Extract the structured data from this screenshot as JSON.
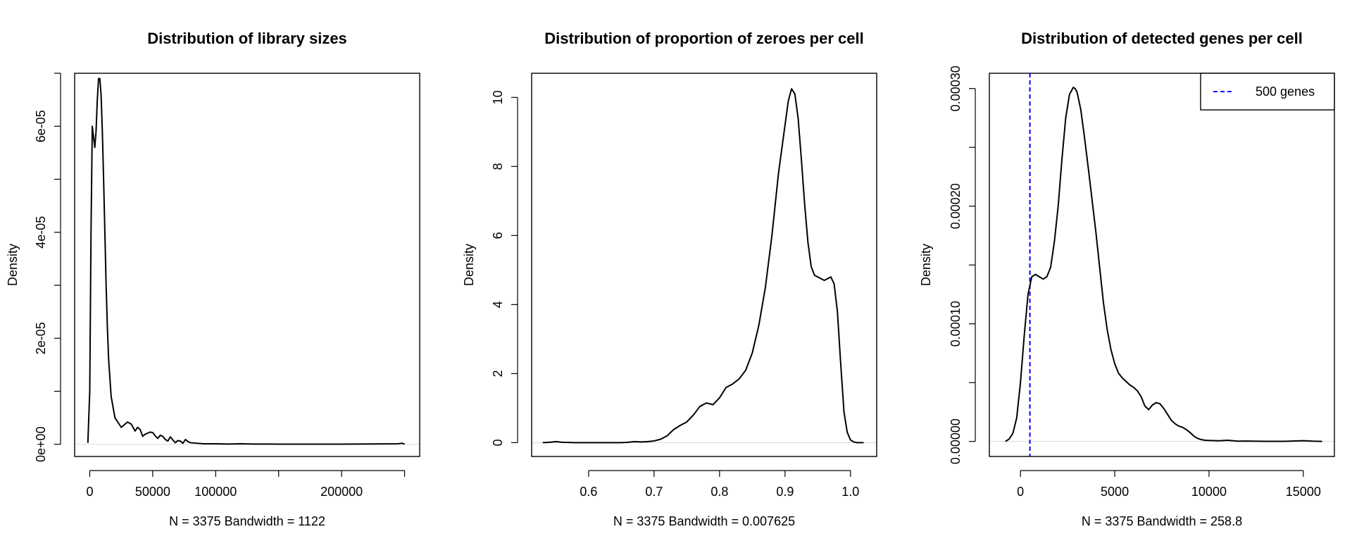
{
  "chart_data": [
    {
      "type": "line",
      "title": "Distribution of library sizes",
      "xlabel": "N = 3375   Bandwidth = 1122",
      "ylabel": "Density",
      "xlim": [
        -12000,
        262000
      ],
      "ylim": [
        -2.3e-06,
        7e-05
      ],
      "x_ticks": [
        {
          "v": 0,
          "t": "0"
        },
        {
          "v": 50000,
          "t": "50000"
        },
        {
          "v": 100000,
          "t": "100000"
        },
        {
          "v": 150000,
          "t": ""
        },
        {
          "v": 200000,
          "t": "200000"
        },
        {
          "v": 250000,
          "t": ""
        }
      ],
      "y_ticks": [
        {
          "v": 0,
          "t": "0e+00"
        },
        {
          "v": 1e-05,
          "t": ""
        },
        {
          "v": 2e-05,
          "t": "2e-05"
        },
        {
          "v": 3e-05,
          "t": ""
        },
        {
          "v": 4e-05,
          "t": "4e-05"
        },
        {
          "v": 5e-05,
          "t": ""
        },
        {
          "v": 6e-05,
          "t": "6e-05"
        },
        {
          "v": 7e-05,
          "t": ""
        }
      ],
      "series": [
        {
          "x": [
            -1500,
            0,
            1000,
            2000,
            3000,
            4000,
            5000,
            6000,
            7000,
            8000,
            9000,
            10000,
            11000,
            12000,
            13000,
            14000,
            15000,
            17000,
            20000,
            25000,
            30000,
            33000,
            36000,
            38000,
            40000,
            42000,
            44000,
            46000,
            48000,
            50000,
            52000,
            54000,
            56000,
            58000,
            60000,
            62000,
            64000,
            66000,
            68000,
            70000,
            72000,
            74000,
            76000,
            78000,
            80000,
            85000,
            90000,
            100000,
            110000,
            120000,
            130000,
            140000,
            150000,
            200000,
            245000,
            248000,
            250000
          ],
          "y": [
            2.5e-07,
            1e-05,
            4e-05,
            6e-05,
            5.8e-05,
            5.6e-05,
            5.9e-05,
            6.5e-05,
            6.9e-05,
            6.9e-05,
            6.6e-05,
            5.9e-05,
            5e-05,
            4e-05,
            3e-05,
            2.2e-05,
            1.6e-05,
            9e-06,
            5e-06,
            3.2e-06,
            4.2e-06,
            3.8e-06,
            2.5e-06,
            3.2e-06,
            2.8e-06,
            1.5e-06,
            1.9e-06,
            2.1e-06,
            2.3e-06,
            2.2e-06,
            1.6e-06,
            1.1e-06,
            1.7e-06,
            1.5e-06,
            9e-07,
            6e-07,
            1.4e-06,
            8e-07,
            3e-07,
            7e-07,
            6e-07,
            2e-07,
            9e-07,
            5e-07,
            3e-07,
            2e-07,
            1e-07,
            1e-07,
            5e-08,
            1e-07,
            5e-08,
            5e-08,
            3e-08,
            2e-08,
            1e-07,
            2e-07,
            2e-08
          ]
        }
      ],
      "note": "",
      "baseline": 0
    },
    {
      "type": "line",
      "title": "Distribution of proportion of zeroes per cell",
      "xlabel": "N = 3375   Bandwidth = 0.007625",
      "ylabel": "Density",
      "xlim": [
        0.513,
        1.04
      ],
      "ylim": [
        -0.4,
        10.7
      ],
      "x_ticks": [
        {
          "v": 0.6,
          "t": "0.6"
        },
        {
          "v": 0.7,
          "t": "0.7"
        },
        {
          "v": 0.8,
          "t": "0.8"
        },
        {
          "v": 0.9,
          "t": "0.9"
        },
        {
          "v": 1.0,
          "t": "1.0"
        }
      ],
      "y_ticks": [
        {
          "v": 0,
          "t": "0"
        },
        {
          "v": 2,
          "t": "2"
        },
        {
          "v": 4,
          "t": "4"
        },
        {
          "v": 6,
          "t": "6"
        },
        {
          "v": 8,
          "t": "8"
        },
        {
          "v": 10,
          "t": "10"
        }
      ],
      "series": [
        {
          "x": [
            0.53,
            0.54,
            0.55,
            0.56,
            0.58,
            0.6,
            0.62,
            0.65,
            0.66,
            0.67,
            0.68,
            0.69,
            0.7,
            0.71,
            0.72,
            0.73,
            0.74,
            0.75,
            0.76,
            0.77,
            0.78,
            0.79,
            0.8,
            0.81,
            0.82,
            0.83,
            0.84,
            0.85,
            0.86,
            0.87,
            0.88,
            0.89,
            0.9,
            0.905,
            0.91,
            0.915,
            0.92,
            0.925,
            0.93,
            0.935,
            0.94,
            0.945,
            0.95,
            0.955,
            0.96,
            0.965,
            0.97,
            0.975,
            0.98,
            0.985,
            0.99,
            0.995,
            1.0,
            1.005,
            1.01,
            1.02
          ],
          "y": [
            0.0,
            0.01,
            0.03,
            0.01,
            0.0,
            0.0,
            0.0,
            0.0,
            0.01,
            0.03,
            0.02,
            0.03,
            0.05,
            0.1,
            0.2,
            0.38,
            0.5,
            0.6,
            0.8,
            1.05,
            1.15,
            1.1,
            1.3,
            1.6,
            1.7,
            1.85,
            2.1,
            2.6,
            3.4,
            4.5,
            6.0,
            7.8,
            9.2,
            9.9,
            10.25,
            10.1,
            9.4,
            8.2,
            6.9,
            5.8,
            5.1,
            4.85,
            4.8,
            4.75,
            4.7,
            4.75,
            4.8,
            4.6,
            3.8,
            2.3,
            0.9,
            0.3,
            0.08,
            0.02,
            0.0,
            0.0
          ]
        }
      ],
      "note": "",
      "baseline": 0
    },
    {
      "type": "line",
      "title": "Distribution of detected genes per cell",
      "xlabel": "N = 3375   Bandwidth = 258.8",
      "ylabel": "Density",
      "xlim": [
        -1650,
        16650
      ],
      "ylim": [
        -1.28e-05,
        0.000313
      ],
      "x_ticks": [
        {
          "v": 0,
          "t": "0"
        },
        {
          "v": 5000,
          "t": "5000"
        },
        {
          "v": 10000,
          "t": "10000"
        },
        {
          "v": 15000,
          "t": "15000"
        }
      ],
      "y_ticks": [
        {
          "v": 0,
          "t": "0.00000"
        },
        {
          "v": 5e-05,
          "t": ""
        },
        {
          "v": 0.0001,
          "t": "0.00010"
        },
        {
          "v": 0.00015,
          "t": ""
        },
        {
          "v": 0.0002,
          "t": "0.00020"
        },
        {
          "v": 0.00025,
          "t": ""
        },
        {
          "v": 0.0003,
          "t": "0.00030"
        }
      ],
      "series": [
        {
          "x": [
            -800,
            -600,
            -400,
            -200,
            0,
            200,
            400,
            600,
            800,
            1000,
            1200,
            1400,
            1600,
            1800,
            2000,
            2200,
            2400,
            2600,
            2800,
            2900,
            3000,
            3200,
            3400,
            3600,
            3800,
            4000,
            4200,
            4400,
            4600,
            4800,
            5000,
            5200,
            5400,
            5600,
            5800,
            6000,
            6200,
            6400,
            6600,
            6800,
            7000,
            7200,
            7400,
            7600,
            7800,
            8000,
            8200,
            8400,
            8600,
            8800,
            9000,
            9200,
            9400,
            9600,
            9800,
            10000,
            10500,
            11000,
            11500,
            12000,
            13000,
            14000,
            15000,
            15500,
            16000
          ],
          "y": [
            0.0,
            2e-06,
            7e-06,
            2e-05,
            5e-05,
            9e-05,
            0.000125,
            0.00014,
            0.000142,
            0.00014,
            0.000138,
            0.00014,
            0.000148,
            0.00017,
            0.0002,
            0.00024,
            0.000275,
            0.000295,
            0.000301,
            0.0003,
            0.000297,
            0.000282,
            0.000258,
            0.000232,
            0.000205,
            0.000178,
            0.000148,
            0.000118,
            9.5e-05,
            7.8e-05,
            6.6e-05,
            5.8e-05,
            5.4e-05,
            5.1e-05,
            4.8e-05,
            4.6e-05,
            4.3e-05,
            3.8e-05,
            3e-05,
            2.7e-05,
            3.1e-05,
            3.3e-05,
            3.2e-05,
            2.8e-05,
            2.3e-05,
            1.8e-05,
            1.5e-05,
            1.3e-05,
            1.2e-05,
            1e-05,
            7.5e-06,
            4.5e-06,
            2.5e-06,
            1.5e-06,
            1e-06,
            8e-07,
            5e-07,
            1e-06,
            2e-07,
            3e-07,
            1e-07,
            1e-07,
            6e-07,
            2e-07,
            0.0
          ],
          "color": "#000000"
        }
      ],
      "reference_line": {
        "x": 500,
        "color": "#0000ff",
        "style": "dashed",
        "label": "500 genes"
      },
      "legend": {
        "position": "top-right",
        "entries": [
          {
            "label": "500 genes",
            "color": "#0000ff",
            "style": "dashed"
          }
        ]
      },
      "note": "",
      "baseline": 0
    }
  ]
}
